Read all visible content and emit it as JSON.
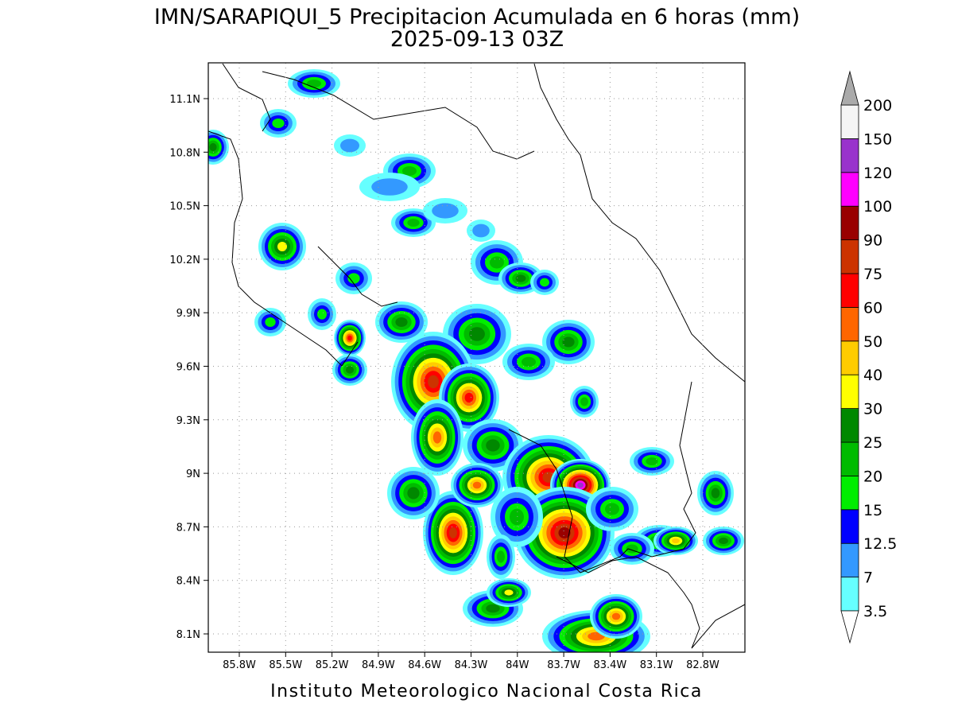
{
  "map": {
    "title": "IMN/SARAPIQUI_5 Precipitacion Acumulada en 6 horas (mm)",
    "subtitle": "2025-09-13 03Z",
    "lon_labels": [
      "85.8W",
      "85.5W",
      "85.2W",
      "84.9W",
      "84.6W",
      "84.3W",
      "84W",
      "83.7W",
      "83.4W",
      "83.1W",
      "82.8W"
    ],
    "lat_labels": [
      "11.1N",
      "10.8N",
      "10.5N",
      "10.2N",
      "9.9N",
      "9.6N",
      "9.3N",
      "9N",
      "8.7N",
      "8.4N",
      "8.1N"
    ],
    "colorbar": {
      "levels": [
        3.5,
        7,
        12.5,
        15,
        20,
        25,
        30,
        40,
        50,
        60,
        75,
        90,
        100,
        120,
        150,
        200
      ],
      "colors": [
        "#66ffff",
        "#3399ff",
        "#0000ff",
        "#00ee00",
        "#00bb00",
        "#008800",
        "#ffff00",
        "#ffcc00",
        "#ff6600",
        "#ff0000",
        "#cc3300",
        "#990000",
        "#ff00ff",
        "#9933cc",
        "#f5f5f5"
      ],
      "under_color": "#ffffff",
      "over_color": "#aaaaaa"
    },
    "credit": "Instituto Meteorologico Nacional Costa Rica"
  }
}
